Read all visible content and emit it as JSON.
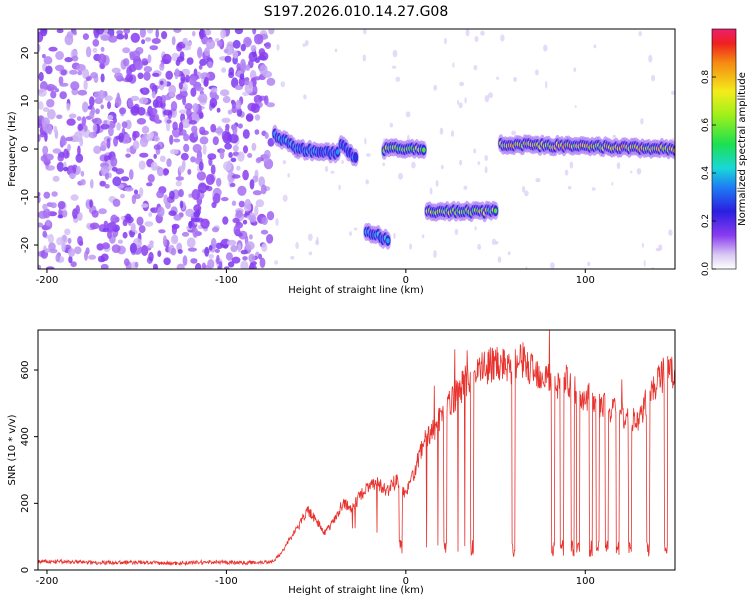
{
  "title": "S197.2026.010.14.27.G08",
  "chart_data": [
    {
      "type": "heatmap",
      "xlabel": "Height of straight line (km)",
      "ylabel": "Frequency (Hz)",
      "xlim": [
        -205,
        150
      ],
      "ylim": [
        -25,
        25
      ],
      "xticks": [
        -200,
        -100,
        0,
        100
      ],
      "yticks": [
        -20,
        -10,
        0,
        10,
        20
      ],
      "colorbar": {
        "label": "Normalized spectral amplitude",
        "range": [
          0,
          1
        ],
        "ticks": [
          0.0,
          0.2,
          0.4,
          0.6,
          0.8
        ]
      },
      "noise_region_xlim": [
        -205,
        -75
      ],
      "tracks": [
        {
          "x": [
            -73,
            -60
          ],
          "freq": [
            3,
            0
          ],
          "amplitude": 0.45
        },
        {
          "x": [
            -60,
            -38
          ],
          "freq": [
            0,
            -1
          ],
          "amplitude": 0.4
        },
        {
          "x": [
            -36,
            -28
          ],
          "freq": [
            1,
            -2
          ],
          "amplitude": 0.35
        },
        {
          "x": [
            -22,
            -10
          ],
          "freq": [
            -17,
            -19
          ],
          "amplitude": 0.45
        },
        {
          "x": [
            -12,
            10
          ],
          "freq": [
            0,
            0
          ],
          "amplitude": 0.75
        },
        {
          "x": [
            12,
            50
          ],
          "freq": [
            -13,
            -13
          ],
          "amplitude": 0.75
        },
        {
          "x": [
            53,
            150
          ],
          "freq": [
            1,
            0
          ],
          "amplitude": 0.85
        }
      ]
    },
    {
      "type": "line",
      "xlabel": "Height of straight line (km)",
      "ylabel": "SNR (10 * v/v)",
      "xlim": [
        -205,
        150
      ],
      "ylim": [
        0,
        720
      ],
      "xticks": [
        -200,
        -100,
        0,
        100
      ],
      "yticks": [
        0,
        200,
        400,
        600
      ],
      "series": [
        {
          "name": "SNR",
          "color": "#e8322d",
          "x": [
            -205,
            -190,
            -170,
            -150,
            -130,
            -110,
            -90,
            -75,
            -70,
            -65,
            -60,
            -55,
            -50,
            -45,
            -40,
            -35,
            -30,
            -25,
            -20,
            -15,
            -10,
            -5,
            0,
            5,
            10,
            15,
            20,
            25,
            30,
            35,
            40,
            45,
            50,
            55,
            60,
            65,
            70,
            75,
            80,
            85,
            90,
            95,
            100,
            105,
            110,
            115,
            120,
            125,
            130,
            135,
            140,
            145,
            150
          ],
          "y": [
            25,
            25,
            22,
            23,
            20,
            24,
            22,
            25,
            45,
            90,
            130,
            180,
            150,
            110,
            150,
            200,
            180,
            230,
            250,
            260,
            240,
            270,
            230,
            300,
            380,
            420,
            460,
            500,
            540,
            580,
            600,
            610,
            620,
            620,
            610,
            630,
            600,
            590,
            580,
            560,
            570,
            540,
            520,
            510,
            490,
            480,
            470,
            450,
            440,
            520,
            560,
            600,
            580
          ],
          "dropouts": [
            -3,
            22,
            37,
            60,
            82,
            87,
            93,
            96,
            103,
            107,
            112,
            118,
            125,
            135,
            145
          ]
        }
      ]
    }
  ]
}
